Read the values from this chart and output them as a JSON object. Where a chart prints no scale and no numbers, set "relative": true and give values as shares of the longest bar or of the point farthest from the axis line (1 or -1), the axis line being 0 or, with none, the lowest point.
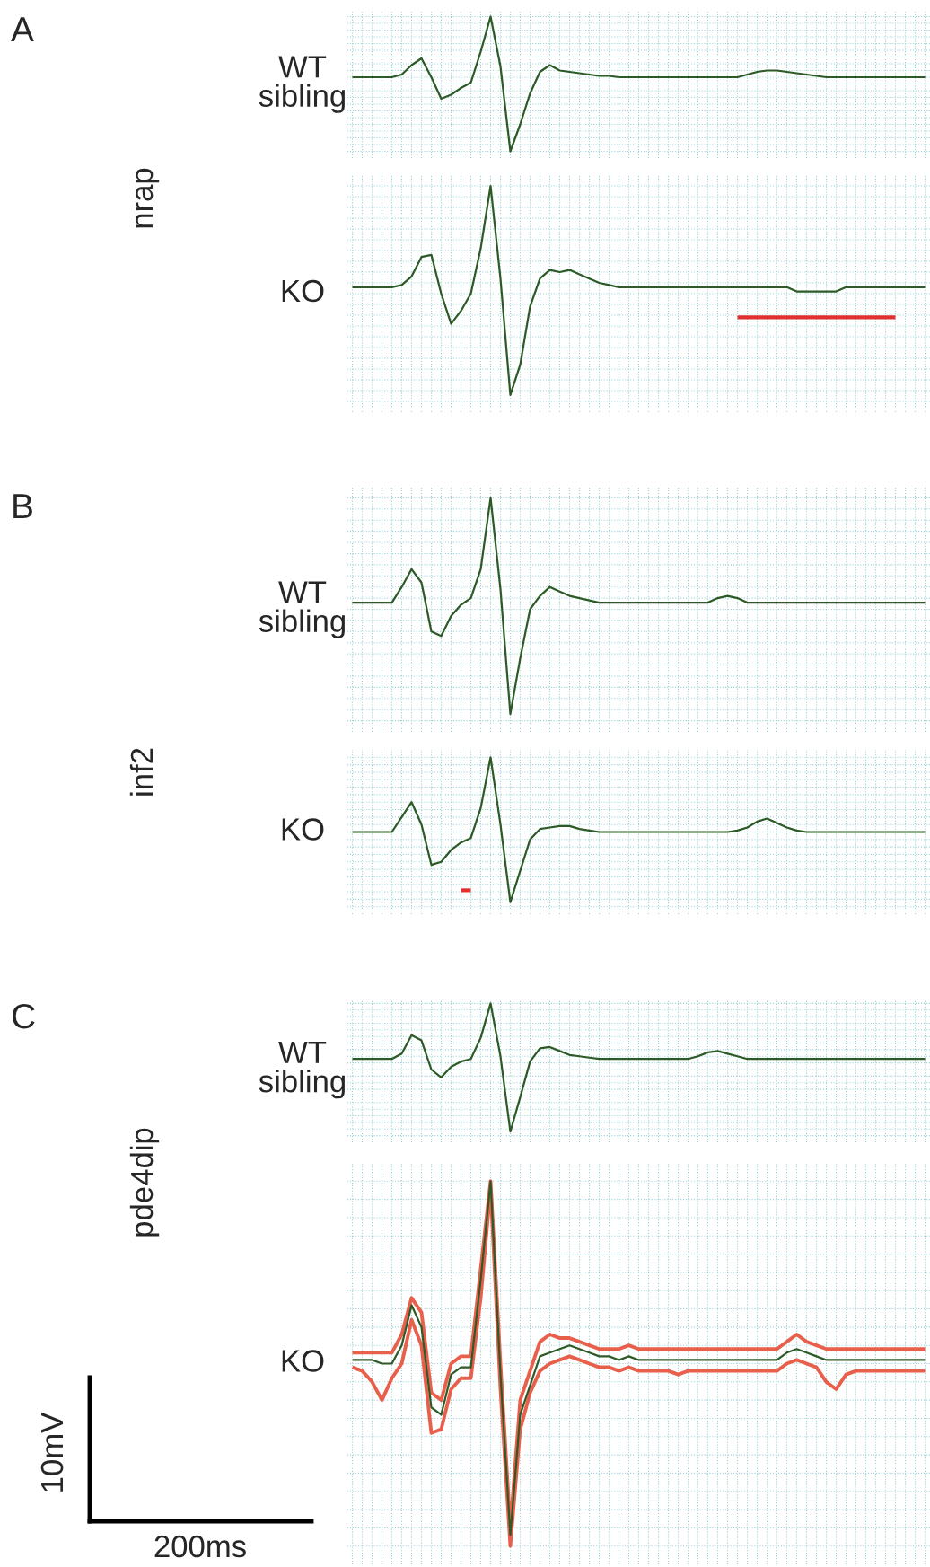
{
  "chart_data": [
    {
      "type": "line",
      "relative": true,
      "ylabel": "WT\nsibling",
      "annotations": [
        "A",
        "nrap"
      ],
      "grid": true,
      "tick_labels": false,
      "categories": [
        null,
        null,
        null,
        null,
        null,
        null,
        null,
        null,
        null,
        null,
        null,
        null,
        null,
        null,
        null,
        null,
        null,
        null,
        null,
        null,
        null,
        null,
        null,
        null,
        null,
        null,
        null,
        null,
        null,
        null,
        null,
        null,
        null,
        null,
        null,
        null,
        null,
        null,
        null,
        null,
        null,
        null,
        null,
        null,
        null,
        null,
        null,
        null,
        null,
        null,
        null,
        null,
        null,
        null,
        null,
        null,
        null,
        null,
        null
      ],
      "series": [
        {
          "color": "#2d5a27",
          "values": [
            0.55,
            0.55,
            0.55,
            0.55,
            0.55,
            0.57,
            0.64,
            0.69,
            0.55,
            0.39,
            0.42,
            0.47,
            0.51,
            0.74,
            1,
            0.63,
            0,
            0.2,
            0.43,
            0.59,
            0.64,
            0.6,
            0.59,
            0.58,
            0.57,
            0.56,
            0.56,
            0.55,
            0.55,
            0.55,
            0.55,
            0.55,
            0.55,
            0.55,
            0.55,
            0.55,
            0.55,
            0.55,
            0.55,
            0.55,
            0.57,
            0.59,
            0.6,
            0.6,
            0.59,
            0.58,
            0.57,
            0.56,
            0.55,
            0.55,
            0.55,
            0.55,
            0.55,
            0.55,
            0.55,
            0.55,
            0.55,
            0.55,
            0.55
          ]
        }
      ]
    },
    {
      "type": "line",
      "relative": true,
      "ylabel": "KO",
      "grid": true,
      "tick_labels": false,
      "categories": [
        null,
        null,
        null,
        null,
        null,
        null,
        null,
        null,
        null,
        null,
        null,
        null,
        null,
        null,
        null,
        null,
        null,
        null,
        null,
        null,
        null,
        null,
        null,
        null,
        null,
        null,
        null,
        null,
        null,
        null,
        null,
        null,
        null,
        null,
        null,
        null,
        null,
        null,
        null,
        null,
        null,
        null,
        null,
        null,
        null,
        null,
        null,
        null,
        null,
        null,
        null,
        null,
        null,
        null,
        null,
        null,
        null,
        null,
        null
      ],
      "series": [
        {
          "color": "#2d5a27",
          "values": [
            0.53,
            0.53,
            0.53,
            0.53,
            0.53,
            0.54,
            0.58,
            0.67,
            0.68,
            0.5,
            0.36,
            0.42,
            0.5,
            0.71,
            1,
            0.57,
            0.03,
            0.17,
            0.44,
            0.57,
            0.61,
            0.6,
            0.61,
            0.59,
            0.57,
            0.55,
            0.54,
            0.53,
            0.53,
            0.53,
            0.53,
            0.53,
            0.53,
            0.53,
            0.53,
            0.53,
            0.53,
            0.53,
            0.53,
            0.53,
            0.53,
            0.53,
            0.53,
            0.53,
            0.53,
            0.51,
            0.51,
            0.51,
            0.51,
            0.51,
            0.53,
            0.53,
            0.53,
            0.53,
            0.53,
            0.53,
            0.53,
            0.53,
            0.53
          ]
        },
        {
          "color": "#e03030",
          "values": [
            null,
            null,
            null,
            null,
            null,
            null,
            null,
            null,
            null,
            null,
            null,
            null,
            null,
            null,
            null,
            null,
            null,
            null,
            null,
            null,
            null,
            null,
            null,
            null,
            null,
            null,
            null,
            null,
            null,
            null,
            null,
            null,
            null,
            null,
            null,
            null,
            null,
            null,
            null,
            0.39,
            0.39,
            0.39,
            0.39,
            0.39,
            0.39,
            0.39,
            0.39,
            0.39,
            0.39,
            0.39,
            0.39,
            0.39,
            0.39,
            0.39,
            0.39,
            0.39,
            null,
            null,
            null
          ]
        }
      ]
    },
    {
      "type": "line",
      "relative": true,
      "ylabel": "WT\nsibling",
      "annotations": [
        "B",
        "inf2"
      ],
      "grid": true,
      "tick_labels": false,
      "categories": [
        null,
        null,
        null,
        null,
        null,
        null,
        null,
        null,
        null,
        null,
        null,
        null,
        null,
        null,
        null,
        null,
        null,
        null,
        null,
        null,
        null,
        null,
        null,
        null,
        null,
        null,
        null,
        null,
        null,
        null,
        null,
        null,
        null,
        null,
        null,
        null,
        null,
        null,
        null,
        null,
        null,
        null,
        null,
        null,
        null,
        null,
        null,
        null,
        null,
        null,
        null,
        null,
        null,
        null,
        null,
        null,
        null,
        null,
        null
      ],
      "series": [
        {
          "color": "#2d5a27",
          "values": [
            0.53,
            0.53,
            0.53,
            0.53,
            0.53,
            0.6,
            0.68,
            0.62,
            0.4,
            0.38,
            0.47,
            0.52,
            0.55,
            0.68,
            1,
            0.59,
            0.03,
            0.28,
            0.5,
            0.56,
            0.6,
            0.58,
            0.56,
            0.55,
            0.54,
            0.53,
            0.53,
            0.53,
            0.53,
            0.53,
            0.53,
            0.53,
            0.53,
            0.53,
            0.53,
            0.53,
            0.53,
            0.55,
            0.56,
            0.55,
            0.53,
            0.53,
            0.53,
            0.53,
            0.53,
            0.53,
            0.53,
            0.53,
            0.53,
            0.53,
            0.53,
            0.53,
            0.53,
            0.53,
            0.53,
            0.53,
            0.53,
            0.53,
            0.53
          ]
        }
      ]
    },
    {
      "type": "line",
      "relative": true,
      "ylabel": "KO",
      "grid": true,
      "tick_labels": false,
      "categories": [
        null,
        null,
        null,
        null,
        null,
        null,
        null,
        null,
        null,
        null,
        null,
        null,
        null,
        null,
        null,
        null,
        null,
        null,
        null,
        null,
        null,
        null,
        null,
        null,
        null,
        null,
        null,
        null,
        null,
        null,
        null,
        null,
        null,
        null,
        null,
        null,
        null,
        null,
        null,
        null,
        null,
        null,
        null,
        null,
        null,
        null,
        null,
        null,
        null,
        null,
        null,
        null,
        null,
        null,
        null,
        null,
        null,
        null,
        null
      ],
      "series": [
        {
          "color": "#2d5a27",
          "values": [
            0.5,
            0.5,
            0.5,
            0.5,
            0.5,
            0.6,
            0.7,
            0.55,
            0.28,
            0.3,
            0.38,
            0.43,
            0.46,
            0.66,
            1,
            0.55,
            0.03,
            0.24,
            0.45,
            0.52,
            0.53,
            0.54,
            0.54,
            0.52,
            0.51,
            0.5,
            0.5,
            0.5,
            0.5,
            0.5,
            0.5,
            0.5,
            0.5,
            0.5,
            0.5,
            0.5,
            0.5,
            0.5,
            0.5,
            0.51,
            0.53,
            0.57,
            0.59,
            0.56,
            0.53,
            0.51,
            0.5,
            0.5,
            0.5,
            0.5,
            0.5,
            0.5,
            0.5,
            0.5,
            0.5,
            0.5,
            0.5,
            0.5,
            0.5
          ]
        },
        {
          "color": "#e03030",
          "values": [
            null,
            null,
            null,
            null,
            null,
            null,
            null,
            null,
            null,
            null,
            null,
            0.11,
            0.11,
            null,
            null,
            null,
            null,
            null,
            null,
            null,
            null,
            null,
            null,
            null,
            null,
            null,
            null,
            null,
            null,
            null,
            null,
            null,
            null,
            null,
            null,
            null,
            null,
            null,
            null,
            null,
            null,
            null,
            null,
            null,
            null,
            null,
            null,
            null,
            null,
            null,
            null,
            null,
            null,
            null,
            null,
            null,
            null,
            null,
            null
          ]
        }
      ]
    },
    {
      "type": "line",
      "relative": true,
      "ylabel": "WT\nsibling",
      "annotations": [
        "C",
        "pde4dip"
      ],
      "grid": true,
      "tick_labels": false,
      "categories": [
        null,
        null,
        null,
        null,
        null,
        null,
        null,
        null,
        null,
        null,
        null,
        null,
        null,
        null,
        null,
        null,
        null,
        null,
        null,
        null,
        null,
        null,
        null,
        null,
        null,
        null,
        null,
        null,
        null,
        null,
        null,
        null,
        null,
        null,
        null,
        null,
        null,
        null,
        null,
        null,
        null,
        null,
        null,
        null,
        null,
        null,
        null,
        null,
        null,
        null,
        null,
        null,
        null,
        null,
        null,
        null,
        null,
        null,
        null
      ],
      "series": [
        {
          "color": "#2d5a27",
          "values": [
            0.58,
            0.58,
            0.58,
            0.58,
            0.58,
            0.62,
            0.76,
            0.72,
            0.5,
            0.44,
            0.52,
            0.56,
            0.58,
            0.74,
            1,
            0.6,
            0.03,
            0.29,
            0.56,
            0.66,
            0.67,
            0.64,
            0.61,
            0.6,
            0.59,
            0.58,
            0.58,
            0.58,
            0.58,
            0.58,
            0.58,
            0.58,
            0.58,
            0.58,
            0.58,
            0.6,
            0.63,
            0.64,
            0.62,
            0.6,
            0.58,
            0.58,
            0.58,
            0.58,
            0.58,
            0.58,
            0.58,
            0.58,
            0.58,
            0.58,
            0.58,
            0.58,
            0.58,
            0.58,
            0.58,
            0.58,
            0.58,
            0.58,
            0.58
          ]
        }
      ]
    },
    {
      "type": "line",
      "relative": true,
      "ylabel": "KO",
      "annotations": [
        "10mV",
        "200ms"
      ],
      "grid": true,
      "tick_labels": false,
      "categories": [
        null,
        null,
        null,
        null,
        null,
        null,
        null,
        null,
        null,
        null,
        null,
        null,
        null,
        null,
        null,
        null,
        null,
        null,
        null,
        null,
        null,
        null,
        null,
        null,
        null,
        null,
        null,
        null,
        null,
        null,
        null,
        null,
        null,
        null,
        null,
        null,
        null,
        null,
        null,
        null,
        null,
        null,
        null,
        null,
        null,
        null,
        null,
        null,
        null,
        null,
        null,
        null,
        null,
        null,
        null,
        null,
        null,
        null,
        null
      ],
      "series": [
        {
          "color": "#e8604c",
          "values": [
            0.53,
            0.53,
            0.53,
            0.53,
            0.53,
            0.58,
            0.68,
            0.64,
            0.42,
            0.4,
            0.5,
            0.52,
            0.52,
            0.76,
            1,
            0.5,
            0.05,
            0.4,
            0.48,
            0.56,
            0.58,
            0.57,
            0.57,
            0.56,
            0.55,
            0.54,
            0.54,
            0.54,
            0.55,
            0.54,
            0.54,
            0.54,
            0.54,
            0.54,
            0.54,
            0.54,
            0.54,
            0.54,
            0.54,
            0.54,
            0.54,
            0.54,
            0.54,
            0.54,
            0.56,
            0.58,
            0.56,
            0.55,
            0.54,
            0.54,
            0.54,
            0.54,
            0.54,
            0.54,
            0.54,
            0.54,
            0.54,
            0.54,
            0.54
          ]
        },
        {
          "color": "#e8604c",
          "values": [
            0.49,
            0.48,
            0.45,
            0.4,
            0.46,
            0.5,
            0.62,
            0.55,
            0.31,
            0.32,
            0.43,
            0.46,
            0.46,
            0.68,
            0.98,
            0.43,
            0,
            0.32,
            0.42,
            0.48,
            0.5,
            0.51,
            0.52,
            0.51,
            0.5,
            0.49,
            0.49,
            0.48,
            0.49,
            0.48,
            0.48,
            0.48,
            0.48,
            0.47,
            0.48,
            0.48,
            0.48,
            0.48,
            0.48,
            0.48,
            0.48,
            0.48,
            0.48,
            0.48,
            0.5,
            0.51,
            0.5,
            0.49,
            0.45,
            0.43,
            0.47,
            0.48,
            0.48,
            0.48,
            0.48,
            0.48,
            0.48,
            0.48,
            0.48
          ]
        },
        {
          "color": "#2d5a27",
          "values": [
            0.51,
            0.51,
            0.51,
            0.5,
            0.5,
            0.55,
            0.66,
            0.6,
            0.38,
            0.36,
            0.47,
            0.49,
            0.49,
            0.73,
            1,
            0.47,
            0.03,
            0.36,
            0.44,
            0.52,
            0.53,
            0.54,
            0.55,
            0.54,
            0.53,
            0.52,
            0.52,
            0.51,
            0.52,
            0.51,
            0.51,
            0.51,
            0.51,
            0.51,
            0.51,
            0.51,
            0.51,
            0.51,
            0.51,
            0.51,
            0.51,
            0.51,
            0.51,
            0.51,
            0.53,
            0.54,
            0.53,
            0.52,
            0.51,
            0.51,
            0.51,
            0.51,
            0.51,
            0.51,
            0.51,
            0.51,
            0.51,
            0.51,
            0.51
          ]
        }
      ]
    }
  ]
}
